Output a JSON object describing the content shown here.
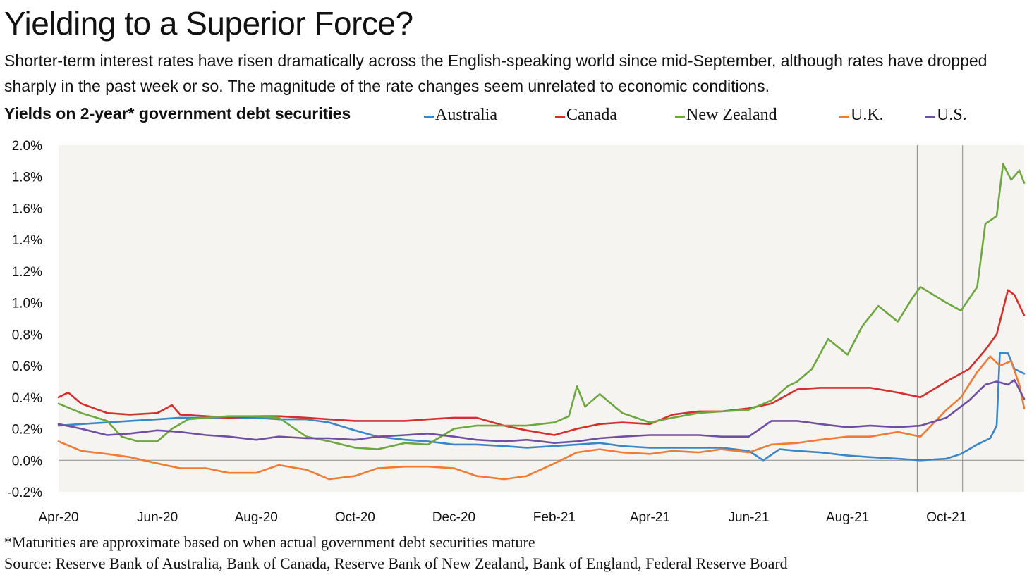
{
  "title": "Yielding to a Superior Force?",
  "subtitle": "Shorter-term interest rates have risen dramatically across the English-speaking world since mid-September, although rates have dropped sharply in the past week or so. The magnitude of the rate changes seem unrelated to economic conditions.",
  "chart_heading": "Yields on 2-year* government debt securities",
  "footnote": "*Maturities are approximate based on when actual government debt securities mature",
  "source": "Source: Reserve Bank of Australia, Bank of Canada, Reserve Bank of New Zealand, Bank of England, Federal Reserve Board",
  "chart_data": {
    "type": "line",
    "title": "Yields on 2-year* government debt securities",
    "xlabel": "",
    "ylabel": "",
    "xlim": [
      "2020-04-01",
      "2021-11-18"
    ],
    "ylim": [
      -0.2,
      2.0
    ],
    "y_ticks": [
      -0.2,
      0.0,
      0.2,
      0.4,
      0.6,
      0.8,
      1.0,
      1.2,
      1.4,
      1.6,
      1.8,
      2.0
    ],
    "y_tick_labels": [
      "-0.2%",
      "0.0%",
      "0.2%",
      "0.4%",
      "0.6%",
      "0.8%",
      "1.0%",
      "1.2%",
      "1.4%",
      "1.6%",
      "1.8%",
      "2.0%"
    ],
    "x_tick_labels": [
      {
        "date": "2020-04-01",
        "label": "Apr-20"
      },
      {
        "date": "2020-06-01",
        "label": "Jun-20"
      },
      {
        "date": "2020-08-01",
        "label": "Aug-20"
      },
      {
        "date": "2020-10-01",
        "label": "Oct-20"
      },
      {
        "date": "2020-12-01",
        "label": "Dec-20"
      },
      {
        "date": "2021-02-01",
        "label": "Feb-21"
      },
      {
        "date": "2021-04-01",
        "label": "Apr-21"
      },
      {
        "date": "2021-06-01",
        "label": "Jun-21"
      },
      {
        "date": "2021-08-01",
        "label": "Aug-21"
      },
      {
        "date": "2021-10-01",
        "label": "Oct-21"
      }
    ],
    "reference_lines": [
      "2021-09-13",
      "2021-10-11"
    ],
    "grid": "zero line only",
    "legend_position": "top",
    "series": [
      {
        "name": "Australia",
        "color": "#3a86c6",
        "points": [
          [
            "2020-04-01",
            0.22
          ],
          [
            "2020-04-15",
            0.23
          ],
          [
            "2020-05-01",
            0.24
          ],
          [
            "2020-05-15",
            0.25
          ],
          [
            "2020-06-01",
            0.26
          ],
          [
            "2020-06-15",
            0.27
          ],
          [
            "2020-07-01",
            0.27
          ],
          [
            "2020-07-15",
            0.27
          ],
          [
            "2020-08-01",
            0.27
          ],
          [
            "2020-08-15",
            0.26
          ],
          [
            "2020-09-01",
            0.26
          ],
          [
            "2020-09-15",
            0.24
          ],
          [
            "2020-10-01",
            0.19
          ],
          [
            "2020-10-15",
            0.15
          ],
          [
            "2020-11-01",
            0.13
          ],
          [
            "2020-11-15",
            0.12
          ],
          [
            "2020-12-01",
            0.1
          ],
          [
            "2020-12-15",
            0.1
          ],
          [
            "2021-01-01",
            0.09
          ],
          [
            "2021-01-15",
            0.08
          ],
          [
            "2021-02-01",
            0.09
          ],
          [
            "2021-02-15",
            0.1
          ],
          [
            "2021-03-01",
            0.11
          ],
          [
            "2021-03-15",
            0.09
          ],
          [
            "2021-04-01",
            0.08
          ],
          [
            "2021-04-15",
            0.08
          ],
          [
            "2021-05-01",
            0.08
          ],
          [
            "2021-05-15",
            0.08
          ],
          [
            "2021-06-01",
            0.06
          ],
          [
            "2021-06-10",
            0.0
          ],
          [
            "2021-06-20",
            0.07
          ],
          [
            "2021-07-01",
            0.06
          ],
          [
            "2021-07-15",
            0.05
          ],
          [
            "2021-08-01",
            0.03
          ],
          [
            "2021-08-15",
            0.02
          ],
          [
            "2021-09-01",
            0.01
          ],
          [
            "2021-09-15",
            0.0
          ],
          [
            "2021-10-01",
            0.01
          ],
          [
            "2021-10-10",
            0.04
          ],
          [
            "2021-10-20",
            0.1
          ],
          [
            "2021-10-28",
            0.14
          ],
          [
            "2021-11-01",
            0.22
          ],
          [
            "2021-11-03",
            0.68
          ],
          [
            "2021-11-08",
            0.68
          ],
          [
            "2021-11-12",
            0.58
          ],
          [
            "2021-11-18",
            0.55
          ]
        ]
      },
      {
        "name": "Canada",
        "color": "#d62d2d",
        "points": [
          [
            "2020-04-01",
            0.4
          ],
          [
            "2020-04-07",
            0.43
          ],
          [
            "2020-04-15",
            0.36
          ],
          [
            "2020-05-01",
            0.3
          ],
          [
            "2020-05-15",
            0.29
          ],
          [
            "2020-06-01",
            0.3
          ],
          [
            "2020-06-10",
            0.35
          ],
          [
            "2020-06-15",
            0.29
          ],
          [
            "2020-07-01",
            0.28
          ],
          [
            "2020-07-15",
            0.27
          ],
          [
            "2020-08-01",
            0.28
          ],
          [
            "2020-08-15",
            0.28
          ],
          [
            "2020-09-01",
            0.27
          ],
          [
            "2020-09-15",
            0.26
          ],
          [
            "2020-10-01",
            0.25
          ],
          [
            "2020-10-15",
            0.25
          ],
          [
            "2020-11-01",
            0.25
          ],
          [
            "2020-11-15",
            0.26
          ],
          [
            "2020-12-01",
            0.27
          ],
          [
            "2020-12-15",
            0.27
          ],
          [
            "2021-01-01",
            0.22
          ],
          [
            "2021-01-15",
            0.19
          ],
          [
            "2021-02-01",
            0.16
          ],
          [
            "2021-02-15",
            0.2
          ],
          [
            "2021-03-01",
            0.23
          ],
          [
            "2021-03-15",
            0.24
          ],
          [
            "2021-04-01",
            0.23
          ],
          [
            "2021-04-15",
            0.29
          ],
          [
            "2021-05-01",
            0.31
          ],
          [
            "2021-05-15",
            0.31
          ],
          [
            "2021-06-01",
            0.33
          ],
          [
            "2021-06-15",
            0.36
          ],
          [
            "2021-07-01",
            0.45
          ],
          [
            "2021-07-15",
            0.46
          ],
          [
            "2021-08-01",
            0.46
          ],
          [
            "2021-08-15",
            0.46
          ],
          [
            "2021-09-01",
            0.43
          ],
          [
            "2021-09-15",
            0.4
          ],
          [
            "2021-10-01",
            0.5
          ],
          [
            "2021-10-15",
            0.58
          ],
          [
            "2021-10-25",
            0.7
          ],
          [
            "2021-11-01",
            0.8
          ],
          [
            "2021-11-08",
            1.08
          ],
          [
            "2021-11-12",
            1.05
          ],
          [
            "2021-11-18",
            0.92
          ]
        ]
      },
      {
        "name": "New Zealand",
        "color": "#6ea740",
        "points": [
          [
            "2020-04-01",
            0.36
          ],
          [
            "2020-04-15",
            0.3
          ],
          [
            "2020-05-01",
            0.25
          ],
          [
            "2020-05-10",
            0.15
          ],
          [
            "2020-05-20",
            0.12
          ],
          [
            "2020-06-01",
            0.12
          ],
          [
            "2020-06-10",
            0.2
          ],
          [
            "2020-06-20",
            0.26
          ],
          [
            "2020-07-01",
            0.27
          ],
          [
            "2020-07-15",
            0.28
          ],
          [
            "2020-08-01",
            0.28
          ],
          [
            "2020-08-15",
            0.27
          ],
          [
            "2020-09-01",
            0.15
          ],
          [
            "2020-09-15",
            0.12
          ],
          [
            "2020-10-01",
            0.08
          ],
          [
            "2020-10-15",
            0.07
          ],
          [
            "2020-11-01",
            0.11
          ],
          [
            "2020-11-15",
            0.1
          ],
          [
            "2020-12-01",
            0.2
          ],
          [
            "2020-12-15",
            0.22
          ],
          [
            "2021-01-01",
            0.22
          ],
          [
            "2021-01-15",
            0.22
          ],
          [
            "2021-02-01",
            0.24
          ],
          [
            "2021-02-10",
            0.28
          ],
          [
            "2021-02-15",
            0.47
          ],
          [
            "2021-02-20",
            0.34
          ],
          [
            "2021-03-01",
            0.42
          ],
          [
            "2021-03-15",
            0.3
          ],
          [
            "2021-04-01",
            0.24
          ],
          [
            "2021-04-15",
            0.27
          ],
          [
            "2021-05-01",
            0.3
          ],
          [
            "2021-05-15",
            0.31
          ],
          [
            "2021-06-01",
            0.32
          ],
          [
            "2021-06-15",
            0.38
          ],
          [
            "2021-06-25",
            0.47
          ],
          [
            "2021-07-01",
            0.5
          ],
          [
            "2021-07-10",
            0.58
          ],
          [
            "2021-07-20",
            0.77
          ],
          [
            "2021-08-01",
            0.67
          ],
          [
            "2021-08-10",
            0.85
          ],
          [
            "2021-08-20",
            0.98
          ],
          [
            "2021-09-01",
            0.88
          ],
          [
            "2021-09-10",
            1.03
          ],
          [
            "2021-09-15",
            1.1
          ],
          [
            "2021-10-01",
            1.0
          ],
          [
            "2021-10-10",
            0.95
          ],
          [
            "2021-10-20",
            1.1
          ],
          [
            "2021-10-25",
            1.5
          ],
          [
            "2021-11-01",
            1.55
          ],
          [
            "2021-11-05",
            1.88
          ],
          [
            "2021-11-10",
            1.78
          ],
          [
            "2021-11-15",
            1.84
          ],
          [
            "2021-11-18",
            1.76
          ]
        ]
      },
      {
        "name": "U.K.",
        "color": "#ef7b34",
        "points": [
          [
            "2020-04-01",
            0.12
          ],
          [
            "2020-04-15",
            0.06
          ],
          [
            "2020-05-01",
            0.04
          ],
          [
            "2020-05-15",
            0.02
          ],
          [
            "2020-06-01",
            -0.02
          ],
          [
            "2020-06-15",
            -0.05
          ],
          [
            "2020-07-01",
            -0.05
          ],
          [
            "2020-07-15",
            -0.08
          ],
          [
            "2020-08-01",
            -0.08
          ],
          [
            "2020-08-15",
            -0.03
          ],
          [
            "2020-09-01",
            -0.06
          ],
          [
            "2020-09-15",
            -0.12
          ],
          [
            "2020-10-01",
            -0.1
          ],
          [
            "2020-10-15",
            -0.05
          ],
          [
            "2020-11-01",
            -0.04
          ],
          [
            "2020-11-15",
            -0.04
          ],
          [
            "2020-12-01",
            -0.05
          ],
          [
            "2020-12-15",
            -0.1
          ],
          [
            "2021-01-01",
            -0.12
          ],
          [
            "2021-01-15",
            -0.1
          ],
          [
            "2021-02-01",
            -0.02
          ],
          [
            "2021-02-15",
            0.05
          ],
          [
            "2021-03-01",
            0.07
          ],
          [
            "2021-03-15",
            0.05
          ],
          [
            "2021-04-01",
            0.04
          ],
          [
            "2021-04-15",
            0.06
          ],
          [
            "2021-05-01",
            0.05
          ],
          [
            "2021-05-15",
            0.07
          ],
          [
            "2021-06-01",
            0.05
          ],
          [
            "2021-06-15",
            0.1
          ],
          [
            "2021-07-01",
            0.11
          ],
          [
            "2021-07-15",
            0.13
          ],
          [
            "2021-08-01",
            0.15
          ],
          [
            "2021-08-15",
            0.15
          ],
          [
            "2021-09-01",
            0.18
          ],
          [
            "2021-09-15",
            0.15
          ],
          [
            "2021-10-01",
            0.32
          ],
          [
            "2021-10-10",
            0.4
          ],
          [
            "2021-10-20",
            0.56
          ],
          [
            "2021-10-28",
            0.66
          ],
          [
            "2021-11-03",
            0.6
          ],
          [
            "2021-11-10",
            0.63
          ],
          [
            "2021-11-15",
            0.48
          ],
          [
            "2021-11-18",
            0.33
          ]
        ]
      },
      {
        "name": "U.S.",
        "color": "#6f4fa3",
        "points": [
          [
            "2020-04-01",
            0.23
          ],
          [
            "2020-04-15",
            0.2
          ],
          [
            "2020-05-01",
            0.16
          ],
          [
            "2020-05-15",
            0.17
          ],
          [
            "2020-06-01",
            0.19
          ],
          [
            "2020-06-15",
            0.18
          ],
          [
            "2020-07-01",
            0.16
          ],
          [
            "2020-07-15",
            0.15
          ],
          [
            "2020-08-01",
            0.13
          ],
          [
            "2020-08-15",
            0.15
          ],
          [
            "2020-09-01",
            0.14
          ],
          [
            "2020-09-15",
            0.14
          ],
          [
            "2020-10-01",
            0.13
          ],
          [
            "2020-10-15",
            0.15
          ],
          [
            "2020-11-01",
            0.16
          ],
          [
            "2020-11-15",
            0.17
          ],
          [
            "2020-12-01",
            0.15
          ],
          [
            "2020-12-15",
            0.13
          ],
          [
            "2021-01-01",
            0.12
          ],
          [
            "2021-01-15",
            0.13
          ],
          [
            "2021-02-01",
            0.11
          ],
          [
            "2021-02-15",
            0.12
          ],
          [
            "2021-03-01",
            0.14
          ],
          [
            "2021-03-15",
            0.15
          ],
          [
            "2021-04-01",
            0.16
          ],
          [
            "2021-04-15",
            0.16
          ],
          [
            "2021-05-01",
            0.16
          ],
          [
            "2021-05-15",
            0.15
          ],
          [
            "2021-06-01",
            0.15
          ],
          [
            "2021-06-15",
            0.25
          ],
          [
            "2021-07-01",
            0.25
          ],
          [
            "2021-07-15",
            0.23
          ],
          [
            "2021-08-01",
            0.21
          ],
          [
            "2021-08-15",
            0.22
          ],
          [
            "2021-09-01",
            0.21
          ],
          [
            "2021-09-15",
            0.22
          ],
          [
            "2021-10-01",
            0.27
          ],
          [
            "2021-10-15",
            0.38
          ],
          [
            "2021-10-25",
            0.48
          ],
          [
            "2021-11-01",
            0.5
          ],
          [
            "2021-11-08",
            0.48
          ],
          [
            "2021-11-12",
            0.51
          ],
          [
            "2021-11-18",
            0.39
          ]
        ]
      }
    ]
  }
}
